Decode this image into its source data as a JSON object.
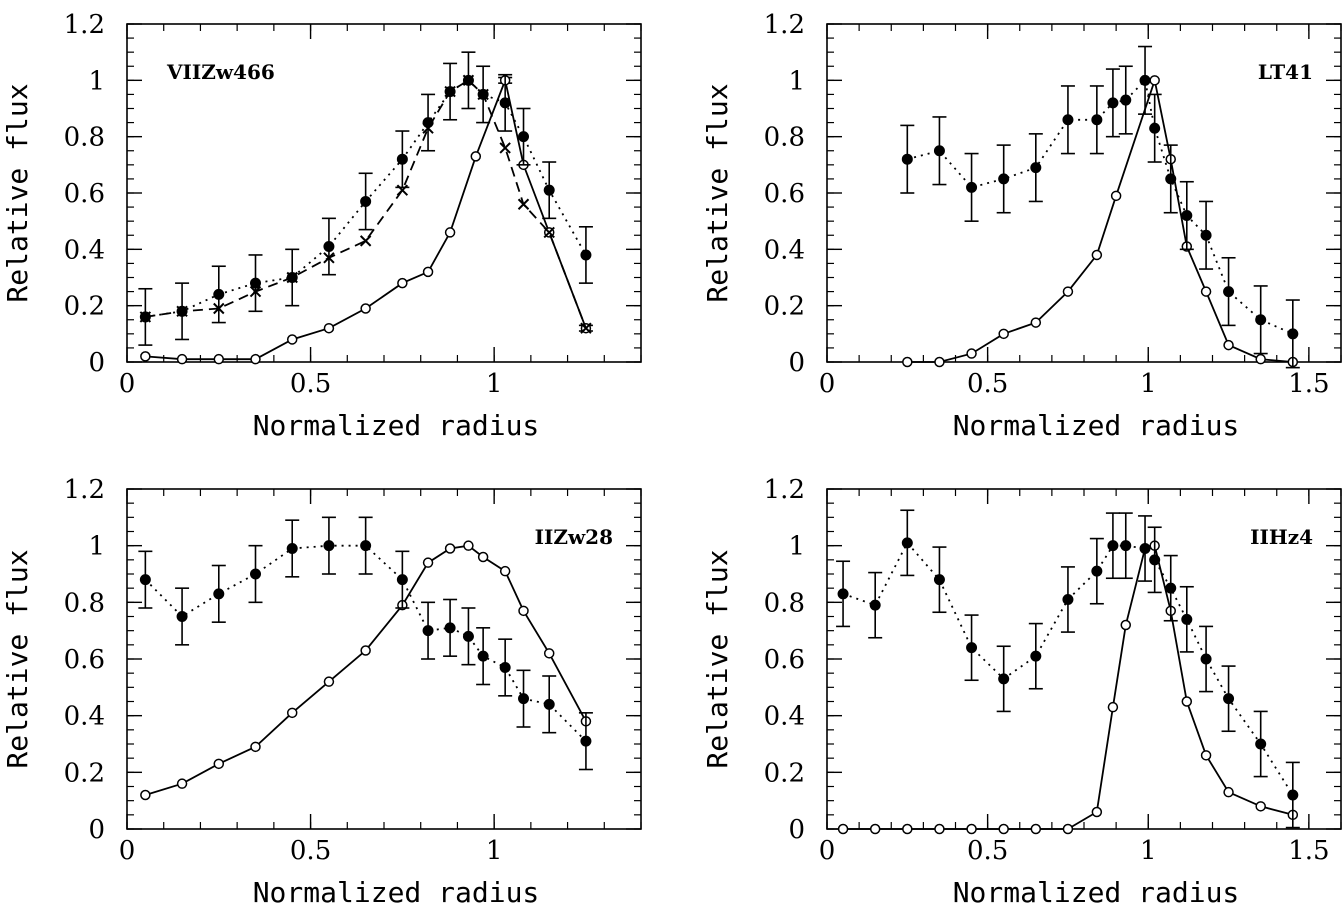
{
  "chart_data": [
    {
      "type": "line",
      "label": "VIIZw466",
      "xlabel": "Normalized radius",
      "ylabel": "Relative flux",
      "xlim": [
        0,
        1.4
      ],
      "ylim": [
        0,
        1.2
      ],
      "xticks": [
        {
          "v": 0,
          "t": "0"
        },
        {
          "v": 0.5,
          "t": "0.5"
        },
        {
          "v": 1,
          "t": "1"
        }
      ],
      "yticks": [
        {
          "v": 0,
          "t": "0"
        },
        {
          "v": 0.2,
          "t": "0.2"
        },
        {
          "v": 0.4,
          "t": "0.4"
        },
        {
          "v": 0.6,
          "t": "0.6"
        },
        {
          "v": 0.8,
          "t": "0.8"
        },
        {
          "v": 1,
          "t": "1"
        },
        {
          "v": 1.2,
          "t": "1.2"
        }
      ],
      "label_position": "top-left",
      "series": [
        {
          "style": "solid",
          "marker": "open-circle",
          "x": [
            0.05,
            0.15,
            0.25,
            0.35,
            0.45,
            0.55,
            0.65,
            0.75,
            0.82,
            0.88,
            0.95,
            1.03,
            1.08,
            1.15,
            1.25
          ],
          "y": [
            0.02,
            0.01,
            0.01,
            0.01,
            0.08,
            0.12,
            0.19,
            0.28,
            0.32,
            0.46,
            0.73,
            1.0,
            0.7,
            0.46,
            0.12
          ],
          "err": [
            0,
            0,
            0,
            0,
            0,
            0,
            0,
            0,
            0,
            0,
            0,
            0.01,
            0,
            0,
            0.01
          ]
        },
        {
          "style": "dotted",
          "marker": "filled-circle",
          "x": [
            0.05,
            0.15,
            0.25,
            0.35,
            0.45,
            0.55,
            0.65,
            0.75,
            0.82,
            0.88,
            0.93,
            0.97,
            1.03,
            1.08,
            1.15,
            1.25
          ],
          "y": [
            0.16,
            0.18,
            0.24,
            0.28,
            0.3,
            0.41,
            0.57,
            0.72,
            0.85,
            0.96,
            1.0,
            0.95,
            0.92,
            0.8,
            0.61,
            0.38
          ],
          "err": [
            0.1,
            0.1,
            0.1,
            0.1,
            0.1,
            0.1,
            0.1,
            0.1,
            0.1,
            0.1,
            0.1,
            0.1,
            0.1,
            0.1,
            0.1,
            0.1
          ]
        },
        {
          "style": "dashed",
          "marker": "cross",
          "x": [
            0.05,
            0.15,
            0.25,
            0.35,
            0.45,
            0.55,
            0.65,
            0.75,
            0.82,
            0.88,
            0.93,
            0.97,
            1.03,
            1.08,
            1.15,
            1.25
          ],
          "y": [
            0.16,
            0.18,
            0.19,
            0.25,
            0.3,
            0.37,
            0.43,
            0.61,
            0.83,
            0.96,
            1.0,
            0.95,
            0.76,
            0.56,
            0.46,
            0.12
          ],
          "err": []
        }
      ]
    },
    {
      "type": "line",
      "label": "LT41",
      "xlabel": "Normalized radius",
      "ylabel": "Relative flux",
      "xlim": [
        0,
        1.6
      ],
      "ylim": [
        0,
        1.2
      ],
      "xticks": [
        {
          "v": 0,
          "t": "0"
        },
        {
          "v": 0.5,
          "t": "0.5"
        },
        {
          "v": 1,
          "t": "1"
        },
        {
          "v": 1.5,
          "t": "1.5"
        }
      ],
      "yticks": [
        {
          "v": 0,
          "t": "0"
        },
        {
          "v": 0.2,
          "t": "0.2"
        },
        {
          "v": 0.4,
          "t": "0.4"
        },
        {
          "v": 0.6,
          "t": "0.6"
        },
        {
          "v": 0.8,
          "t": "0.8"
        },
        {
          "v": 1,
          "t": "1"
        },
        {
          "v": 1.2,
          "t": "1.2"
        }
      ],
      "label_position": "top-right",
      "series": [
        {
          "style": "solid",
          "marker": "open-circle",
          "x": [
            0.25,
            0.35,
            0.45,
            0.55,
            0.65,
            0.75,
            0.84,
            0.9,
            1.02,
            1.07,
            1.12,
            1.18,
            1.25,
            1.35,
            1.45
          ],
          "y": [
            0.0,
            0.0,
            0.03,
            0.1,
            0.14,
            0.25,
            0.38,
            0.59,
            1.0,
            0.72,
            0.41,
            0.25,
            0.06,
            0.01,
            0.0
          ],
          "err": []
        },
        {
          "style": "dotted",
          "marker": "filled-circle",
          "x": [
            0.25,
            0.35,
            0.45,
            0.55,
            0.65,
            0.75,
            0.84,
            0.89,
            0.93,
            0.99,
            1.02,
            1.07,
            1.12,
            1.18,
            1.25,
            1.35,
            1.45
          ],
          "y": [
            0.72,
            0.75,
            0.62,
            0.65,
            0.69,
            0.86,
            0.86,
            0.92,
            0.93,
            1.0,
            0.83,
            0.65,
            0.52,
            0.45,
            0.25,
            0.15,
            0.1
          ],
          "err": [
            0.12,
            0.12,
            0.12,
            0.12,
            0.12,
            0.12,
            0.12,
            0.12,
            0.12,
            0.12,
            0.12,
            0.12,
            0.12,
            0.12,
            0.12,
            0.12,
            0.12
          ]
        }
      ]
    },
    {
      "type": "line",
      "label": "IIZw28",
      "xlabel": "Normalized radius",
      "ylabel": "Relative flux",
      "xlim": [
        0,
        1.4
      ],
      "ylim": [
        0,
        1.2
      ],
      "xticks": [
        {
          "v": 0,
          "t": "0"
        },
        {
          "v": 0.5,
          "t": "0.5"
        },
        {
          "v": 1,
          "t": "1"
        }
      ],
      "yticks": [
        {
          "v": 0,
          "t": "0"
        },
        {
          "v": 0.2,
          "t": "0.2"
        },
        {
          "v": 0.4,
          "t": "0.4"
        },
        {
          "v": 0.6,
          "t": "0.6"
        },
        {
          "v": 0.8,
          "t": "0.8"
        },
        {
          "v": 1,
          "t": "1"
        },
        {
          "v": 1.2,
          "t": "1.2"
        }
      ],
      "label_position": "top-right",
      "series": [
        {
          "style": "solid",
          "marker": "open-circle",
          "x": [
            0.05,
            0.15,
            0.25,
            0.35,
            0.45,
            0.55,
            0.65,
            0.75,
            0.82,
            0.88,
            0.93,
            0.97,
            1.03,
            1.08,
            1.15,
            1.25
          ],
          "y": [
            0.12,
            0.16,
            0.23,
            0.29,
            0.41,
            0.52,
            0.63,
            0.79,
            0.94,
            0.99,
            1.0,
            0.96,
            0.91,
            0.77,
            0.62,
            0.38
          ],
          "err": []
        },
        {
          "style": "dotted",
          "marker": "filled-circle",
          "x": [
            0.05,
            0.15,
            0.25,
            0.35,
            0.45,
            0.55,
            0.65,
            0.75,
            0.82,
            0.88,
            0.93,
            0.97,
            1.03,
            1.08,
            1.15,
            1.25
          ],
          "y": [
            0.88,
            0.75,
            0.83,
            0.9,
            0.99,
            1.0,
            1.0,
            0.88,
            0.7,
            0.71,
            0.68,
            0.61,
            0.57,
            0.46,
            0.44,
            0.31
          ],
          "err": [
            0.1,
            0.1,
            0.1,
            0.1,
            0.1,
            0.1,
            0.1,
            0.1,
            0.1,
            0.1,
            0.1,
            0.1,
            0.1,
            0.1,
            0.1,
            0.1
          ]
        }
      ]
    },
    {
      "type": "line",
      "label": "IIHz4",
      "xlabel": "Normalized radius",
      "ylabel": "Relative flux",
      "xlim": [
        0,
        1.6
      ],
      "ylim": [
        0,
        1.2
      ],
      "xticks": [
        {
          "v": 0,
          "t": "0"
        },
        {
          "v": 0.5,
          "t": "0.5"
        },
        {
          "v": 1,
          "t": "1"
        },
        {
          "v": 1.5,
          "t": "1.5"
        }
      ],
      "yticks": [
        {
          "v": 0,
          "t": "0"
        },
        {
          "v": 0.2,
          "t": "0.2"
        },
        {
          "v": 0.4,
          "t": "0.4"
        },
        {
          "v": 0.6,
          "t": "0.6"
        },
        {
          "v": 0.8,
          "t": "0.8"
        },
        {
          "v": 1,
          "t": "1"
        },
        {
          "v": 1.2,
          "t": "1.2"
        }
      ],
      "label_position": "top-right",
      "series": [
        {
          "style": "solid",
          "marker": "open-circle",
          "x": [
            0.05,
            0.15,
            0.25,
            0.35,
            0.45,
            0.55,
            0.65,
            0.75,
            0.84,
            0.89,
            0.93,
            0.99,
            1.02,
            1.07,
            1.12,
            1.18,
            1.25,
            1.35,
            1.45
          ],
          "y": [
            0.0,
            0.0,
            0.0,
            0.0,
            0.0,
            0.0,
            0.0,
            0.0,
            0.06,
            0.43,
            0.72,
            0.99,
            1.0,
            0.77,
            0.45,
            0.26,
            0.13,
            0.08,
            0.05
          ],
          "err": []
        },
        {
          "style": "dotted",
          "marker": "filled-circle",
          "x": [
            0.05,
            0.15,
            0.25,
            0.35,
            0.45,
            0.55,
            0.65,
            0.75,
            0.84,
            0.89,
            0.93,
            0.99,
            1.02,
            1.07,
            1.12,
            1.18,
            1.25,
            1.35,
            1.45
          ],
          "y": [
            0.83,
            0.79,
            1.01,
            0.88,
            0.64,
            0.53,
            0.61,
            0.81,
            0.91,
            1.0,
            1.0,
            0.99,
            0.95,
            0.85,
            0.74,
            0.6,
            0.46,
            0.3,
            0.12
          ],
          "err": [
            0.115,
            0.115,
            0.115,
            0.115,
            0.115,
            0.115,
            0.115,
            0.115,
            0.115,
            0.115,
            0.115,
            0.115,
            0.115,
            0.115,
            0.115,
            0.115,
            0.115,
            0.115,
            0.115
          ]
        }
      ]
    }
  ]
}
